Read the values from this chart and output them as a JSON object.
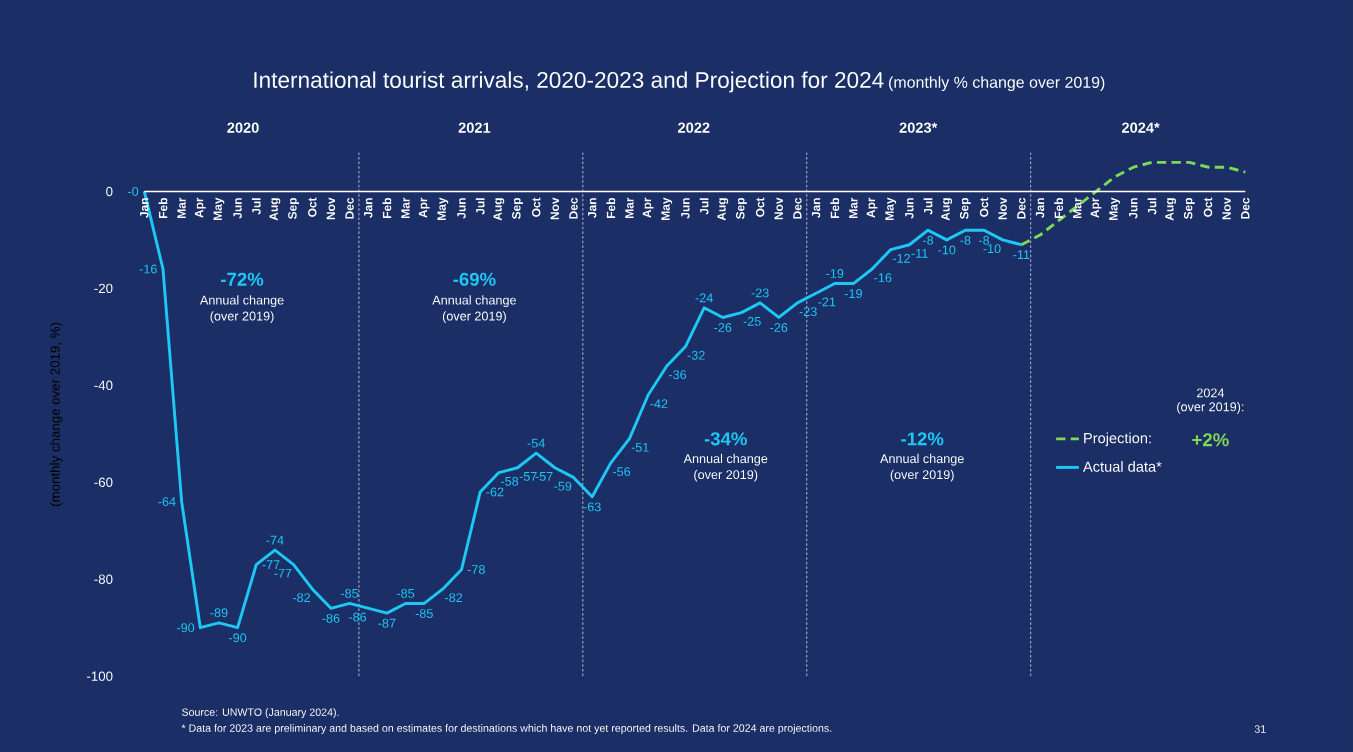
{
  "chart_data": {
    "type": "line",
    "title": "International tourist arrivals, 2020-2023 and Projection for 2024",
    "subtitle": "(monthly % change over 2019)",
    "ylabel": "(monthly change over 2019, %)",
    "categories": [
      "Jan",
      "Feb",
      "Mar",
      "Apr",
      "May",
      "Jun",
      "Jul",
      "Aug",
      "Sep",
      "Oct",
      "Nov",
      "Dec",
      "Jan",
      "Feb",
      "Mar",
      "Apr",
      "May",
      "Jun",
      "Jul",
      "Aug",
      "Sep",
      "Oct",
      "Nov",
      "Dec",
      "Jan",
      "Feb",
      "Mar",
      "Apr",
      "May",
      "Jun",
      "Jul",
      "Aug",
      "Sep",
      "Oct",
      "Nov",
      "Dec",
      "Jan",
      "Feb",
      "Mar",
      "Apr",
      "May",
      "Jun",
      "Jul",
      "Aug",
      "Sep",
      "Oct",
      "Nov",
      "Dec",
      "Jan",
      "Feb",
      "Mar",
      "Apr",
      "May",
      "Jun",
      "Jul",
      "Aug",
      "Sep",
      "Oct",
      "Nov",
      "Dec"
    ],
    "series": [
      {
        "name": "Actual data*",
        "color": "#1ec8f5",
        "line_style": "solid",
        "values": [
          0,
          -16,
          -64,
          -90,
          -89,
          -90,
          -77,
          -74,
          -77,
          -82,
          -86,
          -85,
          -86,
          -87,
          -85,
          -85,
          -82,
          -78,
          -62,
          -58,
          -57,
          -54,
          -57,
          -59,
          -63,
          -56,
          -51,
          -42,
          -36,
          -32,
          -24,
          -26,
          -25,
          -23,
          -26,
          -23,
          -21,
          -19,
          -19,
          -16,
          -12,
          -11,
          -8,
          -10,
          -8,
          -8,
          -10,
          -11,
          null,
          null,
          null,
          null,
          null,
          null,
          null,
          null,
          null,
          null,
          null,
          null
        ],
        "value_labels": [
          "-0",
          "-16",
          "-64",
          "-90",
          "-89",
          "-90",
          "-77",
          "-74",
          "-77",
          "-82",
          "-86",
          "-85",
          "-86",
          "-87",
          "-85",
          "-85",
          "-82",
          "-78",
          "-62",
          "-58",
          "-57",
          "-54",
          "-57",
          "-59",
          "-63",
          "-56",
          "-51",
          "-42",
          "-36",
          "-32",
          "-24",
          "-26",
          "-25",
          "-23",
          "-26",
          "-23",
          "-21",
          "-19",
          "-19",
          "-16",
          "-12",
          "-11",
          "-8",
          "-10",
          "-8",
          "-8",
          "-10",
          "-11",
          null,
          null,
          null,
          null,
          null,
          null,
          null,
          null,
          null,
          null,
          null,
          null
        ]
      },
      {
        "name": "Projection:",
        "color": "#7ed957",
        "line_style": "dashed",
        "values": [
          null,
          null,
          null,
          null,
          null,
          null,
          null,
          null,
          null,
          null,
          null,
          null,
          null,
          null,
          null,
          null,
          null,
          null,
          null,
          null,
          null,
          null,
          null,
          null,
          null,
          null,
          null,
          null,
          null,
          null,
          null,
          null,
          null,
          null,
          null,
          null,
          null,
          null,
          null,
          null,
          null,
          null,
          null,
          null,
          null,
          null,
          null,
          -11,
          -9,
          -6,
          -3,
          0,
          3,
          5,
          6,
          6,
          6,
          5,
          5,
          4
        ]
      }
    ],
    "ylim": [
      -100,
      8
    ],
    "yticks": [
      0,
      -20,
      -40,
      -60,
      -80,
      -100
    ],
    "legend": "right",
    "annotations": [
      "2020",
      "2021",
      "2022",
      "2023*",
      "2024*",
      "-72%",
      "Annual change",
      "(over 2019)",
      "-69%",
      "Annual change",
      "(over 2019)",
      "-34%",
      "Annual change",
      "(over 2019)",
      "-12%",
      "Annual change",
      "(over 2019)",
      "2024",
      "(over 2019):",
      "+2%",
      "Source: UNWTO (January 2024).",
      "* Data for 2023 are preliminary and based on estimates for destinations which have not yet reported results. Data for 2024 are projections.",
      "31"
    ]
  }
}
